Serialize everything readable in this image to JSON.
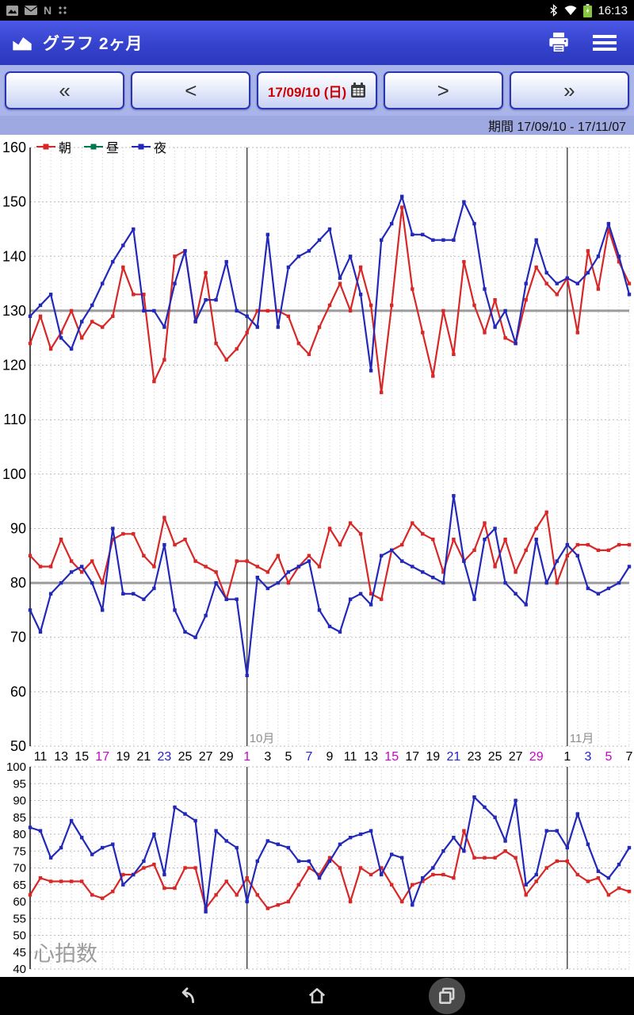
{
  "status_bar": {
    "time": "16:13"
  },
  "app_bar": {
    "title": "グラフ 2ヶ月"
  },
  "toolbar": {
    "first_label": "«",
    "prev_label": "<",
    "date_label": "17/09/10 (日)",
    "next_label": ">",
    "last_label": "»"
  },
  "period_label": "期間 17/09/10 - 17/11/07",
  "legend": {
    "items": [
      {
        "label": "朝",
        "color": "#d82727"
      },
      {
        "label": "昼",
        "color": "#00774d"
      },
      {
        "label": "夜",
        "color": "#2228b8"
      }
    ]
  },
  "chart_data": [
    {
      "type": "line",
      "ylim": [
        50,
        160
      ],
      "ytick_step": 10,
      "reference_lines": [
        130,
        80
      ],
      "n_points": 59,
      "month_lines": [
        21,
        52
      ],
      "month_labels": [
        {
          "text": "10月",
          "index": 21
        },
        {
          "text": "11月",
          "index": 52
        }
      ],
      "x_ticks": [
        {
          "label": "11",
          "index": 1,
          "color": "#000000"
        },
        {
          "label": "13",
          "index": 3,
          "color": "#000000"
        },
        {
          "label": "15",
          "index": 5,
          "color": "#000000"
        },
        {
          "label": "17",
          "index": 7,
          "color": "#cc00cc"
        },
        {
          "label": "19",
          "index": 9,
          "color": "#000000"
        },
        {
          "label": "21",
          "index": 11,
          "color": "#000000"
        },
        {
          "label": "23",
          "index": 13,
          "color": "#2222cc"
        },
        {
          "label": "25",
          "index": 15,
          "color": "#000000"
        },
        {
          "label": "27",
          "index": 17,
          "color": "#000000"
        },
        {
          "label": "29",
          "index": 19,
          "color": "#000000"
        },
        {
          "label": "1",
          "index": 21,
          "color": "#cc00cc"
        },
        {
          "label": "3",
          "index": 23,
          "color": "#000000"
        },
        {
          "label": "5",
          "index": 25,
          "color": "#000000"
        },
        {
          "label": "7",
          "index": 27,
          "color": "#2222cc"
        },
        {
          "label": "9",
          "index": 29,
          "color": "#000000"
        },
        {
          "label": "11",
          "index": 31,
          "color": "#000000"
        },
        {
          "label": "13",
          "index": 33,
          "color": "#000000"
        },
        {
          "label": "15",
          "index": 35,
          "color": "#cc00cc"
        },
        {
          "label": "17",
          "index": 37,
          "color": "#000000"
        },
        {
          "label": "19",
          "index": 39,
          "color": "#000000"
        },
        {
          "label": "21",
          "index": 41,
          "color": "#2222cc"
        },
        {
          "label": "23",
          "index": 43,
          "color": "#000000"
        },
        {
          "label": "25",
          "index": 45,
          "color": "#000000"
        },
        {
          "label": "27",
          "index": 47,
          "color": "#000000"
        },
        {
          "label": "29",
          "index": 49,
          "color": "#cc00cc"
        },
        {
          "label": "1",
          "index": 52,
          "color": "#000000"
        },
        {
          "label": "3",
          "index": 54,
          "color": "#2222cc"
        },
        {
          "label": "5",
          "index": 56,
          "color": "#cc00cc"
        },
        {
          "label": "7",
          "index": 58,
          "color": "#000000"
        }
      ],
      "series": [
        {
          "name": "morning-systolic",
          "color": "#d82727",
          "values": [
            124,
            129,
            123,
            126,
            130,
            125,
            128,
            127,
            129,
            138,
            133,
            133,
            117,
            121,
            140,
            141,
            128,
            137,
            124,
            121,
            123,
            126,
            130,
            130,
            130,
            129,
            124,
            122,
            127,
            131,
            135,
            130,
            138,
            131,
            115,
            131,
            149,
            134,
            126,
            118,
            130,
            122,
            139,
            131,
            126,
            132,
            125,
            124,
            132,
            138,
            135,
            133,
            136,
            126,
            141,
            134,
            145,
            139,
            135
          ]
        },
        {
          "name": "night-systolic",
          "color": "#2228b8",
          "values": [
            129,
            131,
            133,
            125,
            123,
            128,
            131,
            135,
            139,
            142,
            145,
            130,
            130,
            127,
            135,
            141,
            128,
            132,
            132,
            139,
            130,
            129,
            127,
            144,
            127,
            138,
            140,
            141,
            143,
            145,
            136,
            140,
            133,
            119,
            143,
            146,
            151,
            144,
            144,
            143,
            143,
            143,
            150,
            146,
            134,
            127,
            130,
            124,
            135,
            143,
            137,
            135,
            136,
            135,
            137,
            140,
            146,
            140,
            133
          ]
        },
        {
          "name": "morning-diastolic",
          "color": "#d82727",
          "values": [
            85,
            83,
            83,
            88,
            84,
            82,
            84,
            80,
            88,
            89,
            89,
            85,
            83,
            92,
            87,
            88,
            84,
            83,
            82,
            77,
            84,
            84,
            83,
            82,
            85,
            80,
            83,
            85,
            83,
            90,
            87,
            91,
            89,
            78,
            77,
            86,
            87,
            91,
            89,
            88,
            82,
            88,
            84,
            86,
            91,
            83,
            88,
            82,
            86,
            90,
            93,
            80,
            85,
            87,
            87,
            86,
            86,
            87,
            87
          ]
        },
        {
          "name": "night-diastolic",
          "color": "#2228b8",
          "values": [
            75,
            71,
            78,
            80,
            82,
            83,
            80,
            75,
            90,
            78,
            78,
            77,
            79,
            87,
            75,
            71,
            70,
            74,
            80,
            77,
            77,
            63,
            81,
            79,
            80,
            82,
            83,
            84,
            75,
            72,
            71,
            77,
            78,
            76,
            85,
            86,
            84,
            83,
            82,
            81,
            80,
            96,
            84,
            77,
            88,
            90,
            80,
            78,
            76,
            88,
            80,
            84,
            87,
            85,
            79,
            78,
            79,
            80,
            83
          ]
        }
      ]
    },
    {
      "type": "line",
      "watermark": "心拍数",
      "ylim": [
        40,
        100
      ],
      "ytick_step": 5,
      "n_points": 59,
      "series": [
        {
          "name": "morning-pulse",
          "color": "#d82727",
          "values": [
            62,
            67,
            66,
            66,
            66,
            66,
            62,
            61,
            63,
            68,
            68,
            70,
            71,
            64,
            64,
            70,
            70,
            58,
            62,
            66,
            62,
            67,
            62,
            58,
            59,
            60,
            65,
            70,
            68,
            73,
            70,
            60,
            70,
            68,
            70,
            65,
            60,
            65,
            66,
            68,
            68,
            67,
            81,
            73,
            73,
            73,
            75,
            73,
            62,
            66,
            70,
            72,
            72,
            68,
            66,
            67,
            62,
            64,
            63
          ]
        },
        {
          "name": "night-pulse",
          "color": "#2228b8",
          "values": [
            82,
            81,
            73,
            76,
            84,
            79,
            74,
            76,
            77,
            65,
            68,
            72,
            80,
            68,
            88,
            86,
            84,
            57,
            81,
            78,
            76,
            60,
            72,
            78,
            77,
            76,
            72,
            72,
            67,
            72,
            77,
            79,
            80,
            81,
            68,
            74,
            73,
            59,
            67,
            70,
            75,
            79,
            75,
            91,
            88,
            85,
            78,
            90,
            65,
            68,
            81,
            81,
            76,
            86,
            77,
            69,
            67,
            71,
            76
          ]
        }
      ]
    }
  ]
}
